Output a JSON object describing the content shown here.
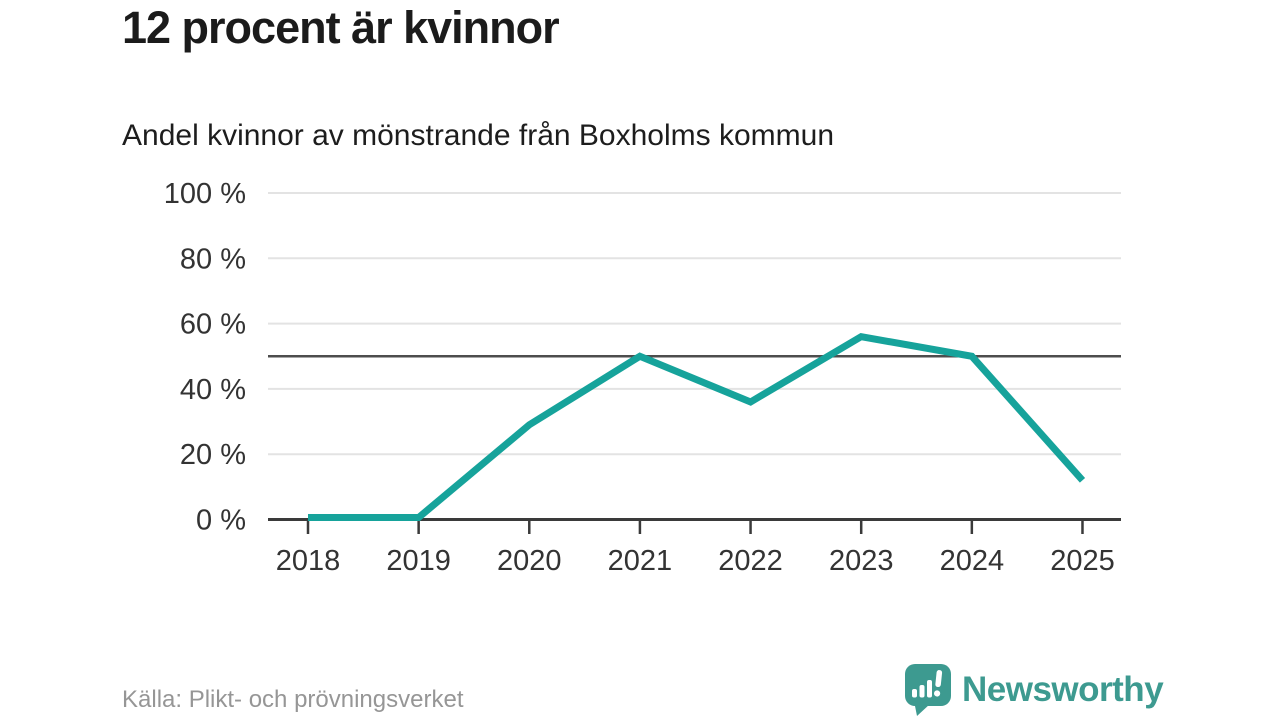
{
  "header": {
    "title": "12 procent är kvinnor",
    "subtitle": "Andel kvinnor av mönstrande från Boxholms kommun"
  },
  "footer": {
    "source": "Källa: Plikt- och prövningsverket",
    "brand_name": "Newsworthy",
    "brand_icon": "bar-chart-speech-bubble-icon"
  },
  "colors": {
    "line": "#16a39b",
    "brand": "#3d9a90",
    "grid": "#e3e3e3",
    "reference_line": "#4d4d4d",
    "axis": "#3a3a3a",
    "tick_label": "#333333",
    "title_text": "#1b1b1b",
    "source_text": "#969696"
  },
  "chart_data": {
    "type": "line",
    "title": "12 procent är kvinnor",
    "subtitle": "Andel kvinnor av mönstrande från Boxholms kommun",
    "x": [
      2018,
      2019,
      2020,
      2021,
      2022,
      2023,
      2024,
      2025
    ],
    "series": [
      {
        "name": "Andel kvinnor av mönstrande",
        "values": [
          0,
          0,
          29,
          50,
          36,
          56,
          50,
          12
        ]
      }
    ],
    "unit": "%",
    "ylim": [
      0,
      100
    ],
    "y_ticks": [
      0,
      20,
      40,
      60,
      80,
      100
    ],
    "y_tick_suffix": " %",
    "reference_line": 50,
    "grid": true,
    "legend_position": "none",
    "xlabel": "",
    "ylabel": ""
  }
}
